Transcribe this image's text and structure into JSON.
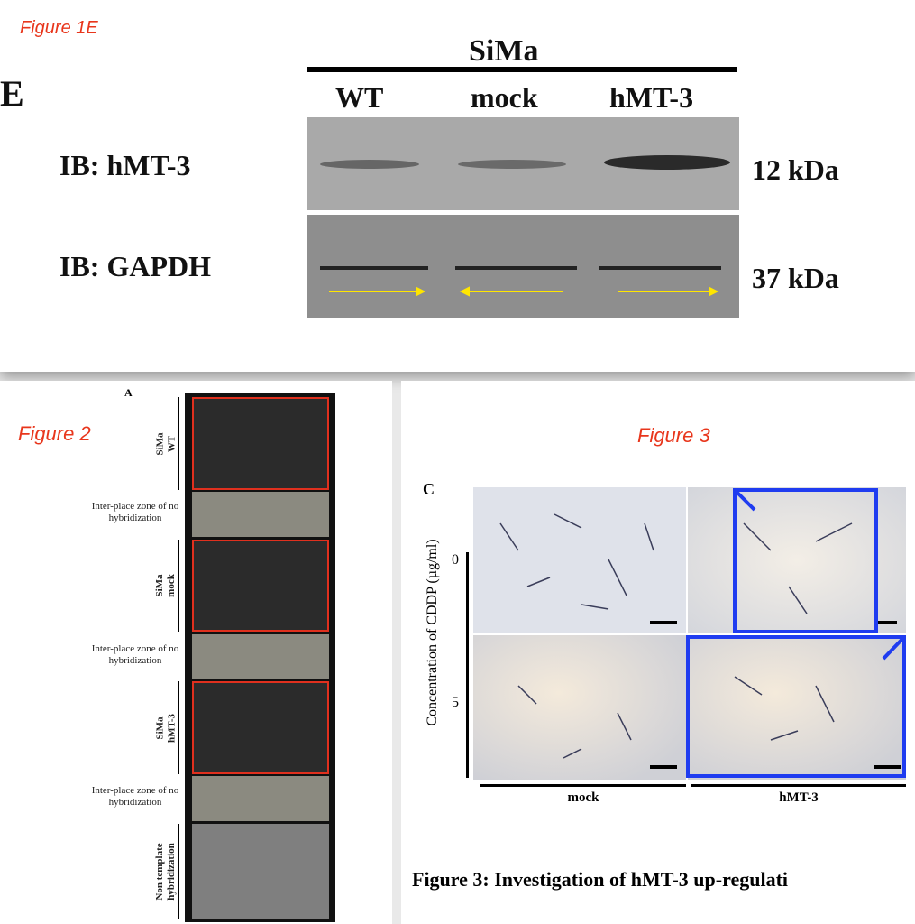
{
  "figure1": {
    "caption": "Figure 1E",
    "panel": "E",
    "cell_line": "SiMa",
    "lanes": [
      "WT",
      "mock",
      "hMT-3"
    ],
    "blots": [
      {
        "label": "IB: hMT-3",
        "size": "12 kDa"
      },
      {
        "label": "IB: GAPDH",
        "size": "37 kDa"
      }
    ]
  },
  "figure2": {
    "caption": "Figure 2",
    "panel": "A",
    "zones": [
      {
        "label": [
          "SiMa",
          "WT"
        ]
      },
      {
        "label": [
          "Inter-place zone of no",
          "hybridization"
        ]
      },
      {
        "label": [
          "SiMa",
          "mock"
        ]
      },
      {
        "label": [
          "Inter-place zone of no",
          "hybridization"
        ]
      },
      {
        "label": [
          "SiMa",
          "hMT-3"
        ]
      },
      {
        "label": [
          "Inter-place zone of no",
          "hybridization"
        ]
      },
      {
        "label": [
          "Non template",
          "hybridization"
        ]
      }
    ]
  },
  "figure3": {
    "caption": "Figure 3",
    "panel": "C",
    "y_label": "Concentration of CDDP (µg/ml)",
    "rows": [
      "0",
      "5"
    ],
    "columns": [
      "mock",
      "hMT-3"
    ],
    "title": "Figure 3: Investigation of hMT-3 up-regulati"
  }
}
